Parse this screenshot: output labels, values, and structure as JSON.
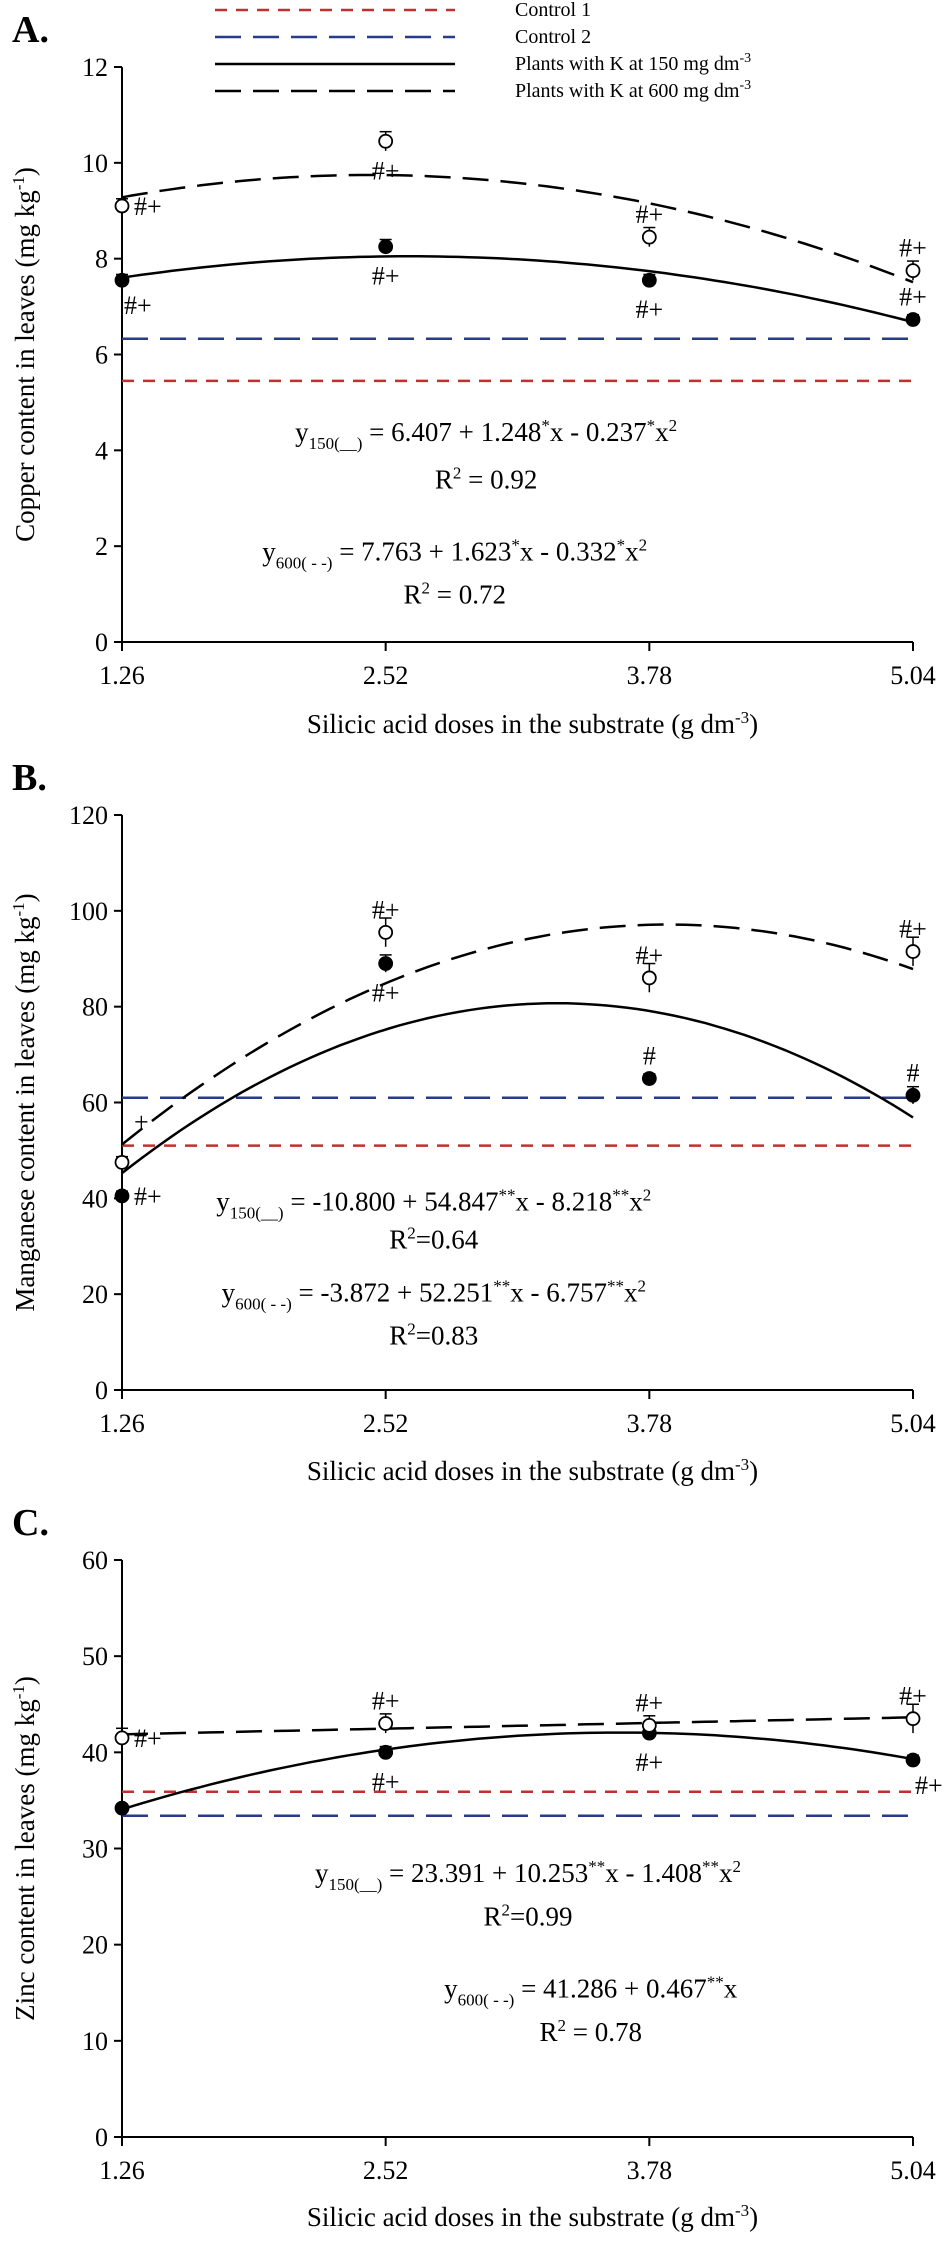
{
  "legend": [
    {
      "label": "Control 1",
      "color": "#c0302e",
      "dash": "short"
    },
    {
      "label": "Control 2",
      "color": "#283a8a",
      "dash": "long"
    },
    {
      "label": "Plants with K at 150 mg dm",
      "sup": "-3",
      "color": "#000000",
      "dash": "solid"
    },
    {
      "label": "Plants with K at 600 mg dm",
      "sup": "-3",
      "color": "#000000",
      "dash": "long"
    }
  ],
  "chart_data": [
    {
      "type": "scatter",
      "panel_label": "A.",
      "xlabel": {
        "text": "Silicic acid doses in the substrate (g dm",
        "sup": "-3",
        "tail": ")"
      },
      "ylabel": {
        "text": "Copper content in leaves (mg kg",
        "sup": "-1",
        "tail": ")"
      },
      "x_ticks": [
        "1.26",
        "2.52",
        "3.78",
        "5.04"
      ],
      "y_ticks": [
        0,
        2,
        4,
        6,
        8,
        10,
        12
      ],
      "ylim": [
        0,
        12
      ],
      "xlim": [
        1.26,
        5.04
      ],
      "control1": 5.45,
      "control2": 6.33,
      "series": [
        {
          "name": "Plants with K at 150 mg dm-3",
          "marker": "filled",
          "x": [
            1.26,
            2.52,
            3.78,
            5.04
          ],
          "y": [
            7.55,
            8.25,
            7.55,
            6.73
          ],
          "err": [
            0.12,
            0.15,
            0.12,
            0.1
          ],
          "fit": [
            6.407,
            1.248,
            -0.237
          ]
        },
        {
          "name": "Plants with K at 600 mg dm-3",
          "marker": "open",
          "x": [
            1.26,
            2.52,
            3.78,
            5.04
          ],
          "y": [
            9.1,
            10.45,
            8.45,
            7.75
          ],
          "err": [
            0.15,
            0.2,
            0.2,
            0.2
          ],
          "fit": [
            7.763,
            1.623,
            -0.332
          ]
        }
      ],
      "annotations": [
        {
          "text": "#+",
          "x": 1.26,
          "y": 9.1,
          "pos": "right"
        },
        {
          "text": "#+",
          "x": 1.26,
          "y": 7.55,
          "pos": "below-right"
        },
        {
          "text": "#+",
          "x": 2.52,
          "y": 10.45,
          "pos": "below"
        },
        {
          "text": "#+",
          "x": 2.52,
          "y": 8.25,
          "pos": "below"
        },
        {
          "text": "#+",
          "x": 3.78,
          "y": 8.45,
          "pos": "above"
        },
        {
          "text": "#+",
          "x": 3.78,
          "y": 7.55,
          "pos": "below"
        },
        {
          "text": "#+",
          "x": 5.04,
          "y": 7.75,
          "pos": "above"
        },
        {
          "text": "#+",
          "x": 5.04,
          "y": 6.73,
          "pos": "above"
        }
      ],
      "equations": [
        {
          "lhs": "y",
          "sub": "150(__)",
          "rhs": [
            [
              "= 6.407 + 1.248",
              ""
            ],
            [
              "*",
              "sup"
            ],
            [
              "x - 0.237",
              ""
            ],
            [
              "*",
              "sup"
            ],
            [
              "x",
              ""
            ],
            [
              "2",
              "sup"
            ]
          ],
          "r2": "R",
          "r2sup": "2",
          "r2val": " = 0.92",
          "ex": 3.0,
          "ey": 4.2,
          "ry": 3.2
        },
        {
          "lhs": "y",
          "sub": "600( - -)",
          "rhs": [
            [
              "= 7.763 + 1.623",
              ""
            ],
            [
              "*",
              "sup"
            ],
            [
              "x - 0.332",
              ""
            ],
            [
              "*",
              "sup"
            ],
            [
              "x",
              ""
            ],
            [
              "2",
              "sup"
            ]
          ],
          "r2": "R",
          "r2sup": "2",
          "r2val": " = 0.72",
          "ex": 2.85,
          "ey": 1.7,
          "ry": 0.8
        }
      ]
    },
    {
      "type": "scatter",
      "panel_label": "B.",
      "xlabel": {
        "text": "Silicic acid doses in the substrate (g dm",
        "sup": "-3",
        "tail": ")"
      },
      "ylabel": {
        "text": "Manganese content in leaves (mg kg",
        "sup": "-1",
        "tail": ")"
      },
      "x_ticks": [
        "1.26",
        "2.52",
        "3.78",
        "5.04"
      ],
      "y_ticks": [
        0,
        20,
        40,
        60,
        80,
        100,
        120
      ],
      "ylim": [
        0,
        120
      ],
      "xlim": [
        1.26,
        5.04
      ],
      "control1": 51.0,
      "control2": 61.0,
      "series": [
        {
          "name": "Plants with K at 150 mg dm-3",
          "marker": "filled",
          "x": [
            1.26,
            2.52,
            3.78,
            5.04
          ],
          "y": [
            40.5,
            89.0,
            65.0,
            61.5
          ],
          "err": [
            1.0,
            1.8,
            1.0,
            1.8
          ],
          "fit": [
            -10.8,
            54.847,
            -8.218
          ]
        },
        {
          "name": "Plants with K at 600 mg dm-3",
          "marker": "open",
          "x": [
            1.26,
            2.52,
            3.78,
            5.04
          ],
          "y": [
            47.5,
            95.5,
            86.0,
            91.5
          ],
          "err": [
            1.2,
            3.0,
            3.0,
            3.0
          ],
          "fit": [
            -3.872,
            52.251,
            -6.757
          ]
        }
      ],
      "annotations": [
        {
          "text": "+",
          "x": 1.26,
          "y": 56,
          "pos": "right"
        },
        {
          "text": "#+",
          "x": 1.26,
          "y": 40.5,
          "pos": "right"
        },
        {
          "text": "#+",
          "x": 2.52,
          "y": 95.5,
          "pos": "above"
        },
        {
          "text": "#+",
          "x": 2.52,
          "y": 89.0,
          "pos": "below"
        },
        {
          "text": "#+",
          "x": 3.78,
          "y": 86.0,
          "pos": "above"
        },
        {
          "text": "#",
          "x": 3.78,
          "y": 65.0,
          "pos": "above"
        },
        {
          "text": "#+",
          "x": 5.04,
          "y": 91.5,
          "pos": "above"
        },
        {
          "text": "#",
          "x": 5.04,
          "y": 61.5,
          "pos": "above"
        }
      ],
      "equations": [
        {
          "lhs": "y",
          "sub": "150(__)",
          "rhs": [
            [
              "= -10.800 + 54.847",
              ""
            ],
            [
              "**",
              "sup"
            ],
            [
              "x - 8.218",
              ""
            ],
            [
              "**",
              "sup"
            ],
            [
              "x",
              ""
            ],
            [
              "2",
              "sup"
            ]
          ],
          "r2": "R",
          "r2sup": "2",
          "r2val": "=0.64",
          "ex": 2.75,
          "ey": 37.5,
          "ry": 29.5
        },
        {
          "lhs": "y",
          "sub": "600( - -)",
          "rhs": [
            [
              "= -3.872 + 52.251",
              ""
            ],
            [
              "**",
              "sup"
            ],
            [
              "x - 6.757",
              ""
            ],
            [
              "**",
              "sup"
            ],
            [
              "x",
              ""
            ],
            [
              "2",
              "sup"
            ]
          ],
          "r2": "R",
          "r2sup": "2",
          "r2val": "=0.83",
          "ex": 2.75,
          "ey": 18.5,
          "ry": 9.5
        }
      ]
    },
    {
      "type": "scatter",
      "panel_label": "C.",
      "xlabel": {
        "text": "Silicic acid doses in the substrate (g dm",
        "sup": "-3",
        "tail": ")"
      },
      "ylabel": {
        "text": "Zinc content in leaves (mg kg",
        "sup": "-1",
        "tail": ")"
      },
      "x_ticks": [
        "1.26",
        "2.52",
        "3.78",
        "5.04"
      ],
      "y_ticks": [
        0,
        10,
        20,
        30,
        40,
        50,
        60
      ],
      "ylim": [
        0,
        60
      ],
      "xlim": [
        1.26,
        5.04
      ],
      "control1": 35.9,
      "control2": 33.4,
      "series": [
        {
          "name": "Plants with K at 150 mg dm-3",
          "marker": "filled",
          "x": [
            1.26,
            2.52,
            3.78,
            5.04
          ],
          "y": [
            34.2,
            40.0,
            42.0,
            39.2
          ],
          "err": [
            0.4,
            0.6,
            0.6,
            0.5
          ],
          "fit": [
            23.391,
            10.253,
            -1.408
          ]
        },
        {
          "name": "Plants with K at 600 mg dm-3",
          "marker": "open",
          "x": [
            1.26,
            2.52,
            3.78,
            5.04
          ],
          "y": [
            41.5,
            43.0,
            42.8,
            43.5
          ],
          "err": [
            1.0,
            1.0,
            1.0,
            1.5
          ],
          "fit": [
            41.286,
            0.467,
            0.0
          ]
        }
      ],
      "annotations": [
        {
          "text": "#+",
          "x": 1.26,
          "y": 41.5,
          "pos": "right"
        },
        {
          "text": "#+",
          "x": 2.52,
          "y": 43.0,
          "pos": "above"
        },
        {
          "text": "#+",
          "x": 2.52,
          "y": 40.0,
          "pos": "below"
        },
        {
          "text": "#+",
          "x": 3.78,
          "y": 42.8,
          "pos": "above"
        },
        {
          "text": "#+",
          "x": 3.78,
          "y": 42.0,
          "pos": "below"
        },
        {
          "text": "#+",
          "x": 5.04,
          "y": 43.5,
          "pos": "above"
        },
        {
          "text": "#+",
          "x": 5.04,
          "y": 39.2,
          "pos": "below-right"
        }
      ],
      "equations": [
        {
          "lhs": "y",
          "sub": "150(__)",
          "rhs": [
            [
              "= 23.391 + 10.253",
              ""
            ],
            [
              "**",
              "sup"
            ],
            [
              "x - 1.408",
              ""
            ],
            [
              "**",
              "sup"
            ],
            [
              "x",
              ""
            ],
            [
              "2",
              "sup"
            ]
          ],
          "r2": "R",
          "r2sup": "2",
          "r2val": "=0.99",
          "ex": 3.2,
          "ey": 26.5,
          "ry": 22.0
        },
        {
          "lhs": "y",
          "sub": "600( - -)",
          "rhs": [
            [
              "= 41.286 + 0.467",
              ""
            ],
            [
              "**",
              "sup"
            ],
            [
              "x",
              ""
            ]
          ],
          "r2": "R",
          "r2sup": "2",
          "r2val": " = 0.78",
          "ex": 3.5,
          "ey": 14.5,
          "ry": 10.0
        }
      ]
    }
  ]
}
